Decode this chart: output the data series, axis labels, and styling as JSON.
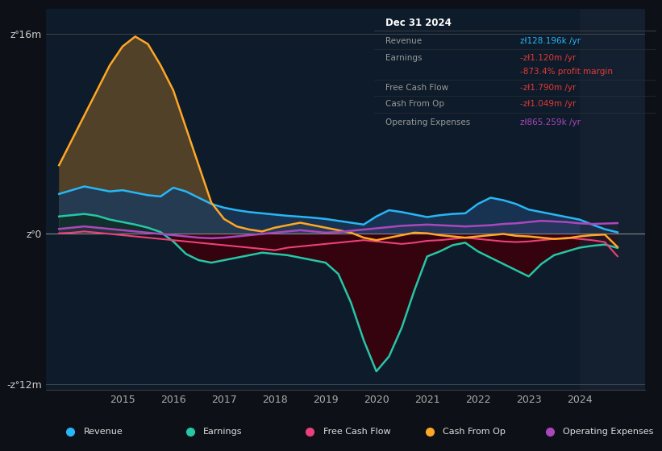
{
  "bg_color": "#0d1117",
  "plot_bg_color": "#0d1b2a",
  "ylim": [
    -12500000,
    18000000
  ],
  "xlim": [
    2013.5,
    2025.3
  ],
  "ytick_positions": [
    -12000000,
    0,
    16000000
  ],
  "ytick_labels": [
    "-zᐤ12m",
    "zᐤ0",
    "zᐤ16m"
  ],
  "xticks": [
    2015,
    2016,
    2017,
    2018,
    2019,
    2020,
    2021,
    2022,
    2023,
    2024
  ],
  "legend_items": [
    {
      "label": "Revenue",
      "color": "#29b6f6"
    },
    {
      "label": "Earnings",
      "color": "#26c6a6"
    },
    {
      "label": "Free Cash Flow",
      "color": "#ec407a"
    },
    {
      "label": "Cash From Op",
      "color": "#ffa726"
    },
    {
      "label": "Operating Expenses",
      "color": "#ab47bc"
    }
  ],
  "info_title": "Dec 31 2024",
  "info_rows": [
    {
      "label": "Revenue",
      "value": "zł128.196k /yr",
      "vc": "#29b6f6",
      "sep_above": false
    },
    {
      "label": "Earnings",
      "value": "-zł1.120m /yr",
      "vc": "#e53935",
      "sep_above": true
    },
    {
      "label": "",
      "value": "-873.4% profit margin",
      "vc": "#e53935",
      "sep_above": false
    },
    {
      "label": "Free Cash Flow",
      "value": "-zł1.790m /yr",
      "vc": "#e53935",
      "sep_above": true
    },
    {
      "label": "Cash From Op",
      "value": "-zł1.049m /yr",
      "vc": "#e53935",
      "sep_above": true
    },
    {
      "label": "Operating Expenses",
      "value": "zł865.259k /yr",
      "vc": "#ab47bc",
      "sep_above": true
    }
  ],
  "t": [
    2013.75,
    2014.0,
    2014.25,
    2014.5,
    2014.75,
    2015.0,
    2015.25,
    2015.5,
    2015.75,
    2016.0,
    2016.25,
    2016.5,
    2016.75,
    2017.0,
    2017.25,
    2017.5,
    2017.75,
    2018.0,
    2018.25,
    2018.5,
    2018.75,
    2019.0,
    2019.25,
    2019.5,
    2019.75,
    2020.0,
    2020.25,
    2020.5,
    2020.75,
    2021.0,
    2021.25,
    2021.5,
    2021.75,
    2022.0,
    2022.25,
    2022.5,
    2022.75,
    2023.0,
    2023.25,
    2023.5,
    2023.75,
    2024.0,
    2024.25,
    2024.5,
    2024.75
  ],
  "revenue": [
    3200000,
    3500000,
    3800000,
    3600000,
    3400000,
    3500000,
    3300000,
    3100000,
    3000000,
    3700000,
    3400000,
    2900000,
    2400000,
    2100000,
    1900000,
    1750000,
    1650000,
    1550000,
    1450000,
    1380000,
    1300000,
    1200000,
    1050000,
    900000,
    750000,
    1400000,
    1900000,
    1750000,
    1550000,
    1350000,
    1500000,
    1600000,
    1650000,
    2400000,
    2900000,
    2700000,
    2400000,
    1950000,
    1750000,
    1550000,
    1350000,
    1150000,
    750000,
    380000,
    128196
  ],
  "earnings": [
    1400000,
    1500000,
    1600000,
    1450000,
    1150000,
    950000,
    750000,
    500000,
    150000,
    -600000,
    -1600000,
    -2100000,
    -2300000,
    -2100000,
    -1900000,
    -1700000,
    -1500000,
    -1600000,
    -1700000,
    -1900000,
    -2100000,
    -2300000,
    -3200000,
    -5500000,
    -8500000,
    -11000000,
    -9800000,
    -7500000,
    -4500000,
    -1800000,
    -1400000,
    -900000,
    -700000,
    -1400000,
    -1900000,
    -2400000,
    -2900000,
    -3400000,
    -2400000,
    -1700000,
    -1400000,
    -1100000,
    -950000,
    -850000,
    -1120000
  ],
  "fcf": [
    50000,
    100000,
    200000,
    100000,
    0,
    -100000,
    -200000,
    -300000,
    -400000,
    -500000,
    -600000,
    -700000,
    -800000,
    -900000,
    -1000000,
    -1100000,
    -1200000,
    -1300000,
    -1100000,
    -1000000,
    -900000,
    -800000,
    -700000,
    -600000,
    -500000,
    -600000,
    -700000,
    -800000,
    -700000,
    -550000,
    -500000,
    -400000,
    -300000,
    -400000,
    -500000,
    -600000,
    -650000,
    -600000,
    -500000,
    -400000,
    -300000,
    -400000,
    -500000,
    -650000,
    -1790000
  ],
  "cashop": [
    5500000,
    7500000,
    9500000,
    11500000,
    13500000,
    15000000,
    15800000,
    15200000,
    13500000,
    11500000,
    8500000,
    5500000,
    2500000,
    1200000,
    600000,
    350000,
    200000,
    500000,
    700000,
    900000,
    700000,
    500000,
    300000,
    100000,
    -300000,
    -500000,
    -300000,
    -100000,
    100000,
    50000,
    -100000,
    -200000,
    -300000,
    -200000,
    -100000,
    0,
    -150000,
    -200000,
    -300000,
    -400000,
    -350000,
    -200000,
    -100000,
    -50000,
    -1049000
  ],
  "opex": [
    400000,
    500000,
    600000,
    500000,
    400000,
    300000,
    200000,
    100000,
    0,
    -100000,
    -200000,
    -300000,
    -350000,
    -300000,
    -200000,
    -100000,
    0,
    100000,
    200000,
    300000,
    200000,
    100000,
    150000,
    250000,
    350000,
    450000,
    550000,
    650000,
    700000,
    750000,
    700000,
    650000,
    600000,
    650000,
    700000,
    800000,
    850000,
    950000,
    1050000,
    1000000,
    950000,
    850000,
    800000,
    830000,
    865259
  ]
}
